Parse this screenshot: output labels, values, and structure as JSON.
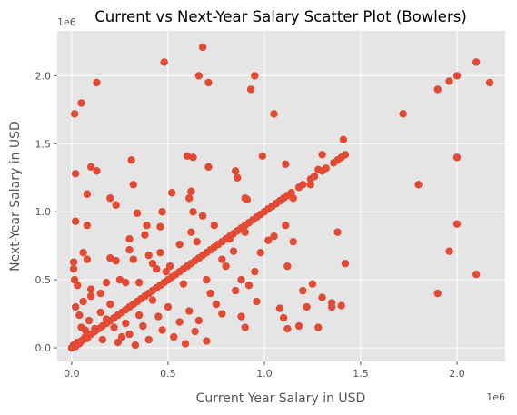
{
  "chart_data": {
    "type": "scatter",
    "title": "Current vs Next-Year Salary Scatter Plot (Bowlers)",
    "xlabel": "Current Year Salary in USD",
    "ylabel": "Next-Year Salary in USD",
    "x_offset_label": "1e6",
    "y_offset_label": "1e6",
    "xlim": [
      -75000,
      2250000
    ],
    "ylim": [
      -100000,
      2330000
    ],
    "x_ticks": [
      0,
      500000,
      1000000,
      1500000,
      2000000
    ],
    "x_tick_labels": [
      "0.0",
      "0.5",
      "1.0",
      "1.5",
      "2.0"
    ],
    "y_ticks": [
      0,
      500000,
      1000000,
      1500000,
      2000000
    ],
    "y_tick_labels": [
      "0.0",
      "0.5",
      "1.0",
      "1.5",
      "2.0"
    ],
    "grid": true,
    "style": "ggplot",
    "colors": {
      "point": "#E24A33",
      "plot_bg": "#E5E5E5",
      "grid": "#FFFFFF"
    },
    "points": [
      [
        0,
        0
      ],
      [
        10000,
        20000
      ],
      [
        20000,
        10000
      ],
      [
        30000,
        40000
      ],
      [
        40000,
        30000
      ],
      [
        50000,
        50000
      ],
      [
        60000,
        60000
      ],
      [
        70000,
        80000
      ],
      [
        80000,
        70000
      ],
      [
        90000,
        90000
      ],
      [
        100000,
        100000
      ],
      [
        120000,
        120000
      ],
      [
        140000,
        140000
      ],
      [
        160000,
        160000
      ],
      [
        180000,
        180000
      ],
      [
        200000,
        200000
      ],
      [
        220000,
        220000
      ],
      [
        240000,
        240000
      ],
      [
        260000,
        260000
      ],
      [
        280000,
        280000
      ],
      [
        300000,
        300000
      ],
      [
        320000,
        320000
      ],
      [
        340000,
        340000
      ],
      [
        360000,
        360000
      ],
      [
        380000,
        380000
      ],
      [
        400000,
        400000
      ],
      [
        420000,
        420000
      ],
      [
        440000,
        440000
      ],
      [
        460000,
        460000
      ],
      [
        480000,
        480000
      ],
      [
        500000,
        500000
      ],
      [
        520000,
        520000
      ],
      [
        540000,
        540000
      ],
      [
        560000,
        560000
      ],
      [
        580000,
        580000
      ],
      [
        600000,
        600000
      ],
      [
        620000,
        620000
      ],
      [
        640000,
        640000
      ],
      [
        660000,
        660000
      ],
      [
        680000,
        680000
      ],
      [
        700000,
        700000
      ],
      [
        720000,
        720000
      ],
      [
        740000,
        740000
      ],
      [
        760000,
        760000
      ],
      [
        780000,
        780000
      ],
      [
        800000,
        800000
      ],
      [
        820000,
        820000
      ],
      [
        840000,
        840000
      ],
      [
        860000,
        860000
      ],
      [
        880000,
        880000
      ],
      [
        900000,
        900000
      ],
      [
        920000,
        920000
      ],
      [
        940000,
        940000
      ],
      [
        960000,
        960000
      ],
      [
        980000,
        980000
      ],
      [
        1000000,
        1000000
      ],
      [
        1020000,
        1020000
      ],
      [
        1040000,
        1040000
      ],
      [
        1060000,
        1060000
      ],
      [
        1080000,
        1080000
      ],
      [
        1100000,
        1100000
      ],
      [
        1120000,
        1120000
      ],
      [
        1140000,
        1140000
      ],
      [
        1180000,
        1180000
      ],
      [
        1200000,
        1200000
      ],
      [
        1240000,
        1240000
      ],
      [
        1260000,
        1260000
      ],
      [
        1300000,
        1300000
      ],
      [
        1320000,
        1320000
      ],
      [
        1360000,
        1360000
      ],
      [
        1380000,
        1380000
      ],
      [
        1400000,
        1400000
      ],
      [
        1420000,
        1420000
      ],
      [
        1720000,
        1720000
      ],
      [
        1900000,
        1900000
      ],
      [
        1960000,
        1960000
      ],
      [
        2000000,
        2000000
      ],
      [
        2100000,
        2100000
      ],
      [
        15000,
        1720000
      ],
      [
        50000,
        1800000
      ],
      [
        130000,
        1950000
      ],
      [
        480000,
        2100000
      ],
      [
        680000,
        2210000
      ],
      [
        660000,
        2000000
      ],
      [
        710000,
        1950000
      ],
      [
        930000,
        1900000
      ],
      [
        950000,
        2000000
      ],
      [
        1050000,
        1720000
      ],
      [
        20000,
        1280000
      ],
      [
        100000,
        1330000
      ],
      [
        130000,
        1300000
      ],
      [
        310000,
        1380000
      ],
      [
        320000,
        1200000
      ],
      [
        600000,
        1410000
      ],
      [
        630000,
        1400000
      ],
      [
        710000,
        1330000
      ],
      [
        850000,
        1300000
      ],
      [
        860000,
        1250000
      ],
      [
        990000,
        1410000
      ],
      [
        1110000,
        1350000
      ],
      [
        1280000,
        1310000
      ],
      [
        1300000,
        1420000
      ],
      [
        1410000,
        1530000
      ],
      [
        1800000,
        1200000
      ],
      [
        2170000,
        1950000
      ],
      [
        20000,
        930000
      ],
      [
        80000,
        900000
      ],
      [
        80000,
        1130000
      ],
      [
        200000,
        1100000
      ],
      [
        230000,
        1050000
      ],
      [
        340000,
        990000
      ],
      [
        390000,
        900000
      ],
      [
        460000,
        890000
      ],
      [
        470000,
        1000000
      ],
      [
        520000,
        1140000
      ],
      [
        610000,
        1100000
      ],
      [
        620000,
        1150000
      ],
      [
        630000,
        1000000
      ],
      [
        680000,
        970000
      ],
      [
        900000,
        1100000
      ],
      [
        910000,
        1090000
      ],
      [
        1110000,
        900000
      ],
      [
        1150000,
        1100000
      ],
      [
        1240000,
        1200000
      ],
      [
        1380000,
        850000
      ],
      [
        2000000,
        910000
      ],
      [
        2000000,
        1400000
      ],
      [
        1900000,
        400000
      ],
      [
        1960000,
        710000
      ],
      [
        2100000,
        540000
      ],
      [
        1420000,
        620000
      ],
      [
        10000,
        580000
      ],
      [
        10000,
        630000
      ],
      [
        15000,
        500000
      ],
      [
        30000,
        460000
      ],
      [
        60000,
        700000
      ],
      [
        80000,
        650000
      ],
      [
        100000,
        430000
      ],
      [
        150000,
        400000
      ],
      [
        180000,
        480000
      ],
      [
        200000,
        660000
      ],
      [
        230000,
        640000
      ],
      [
        250000,
        500000
      ],
      [
        280000,
        480000
      ],
      [
        300000,
        720000
      ],
      [
        300000,
        800000
      ],
      [
        320000,
        650000
      ],
      [
        350000,
        480000
      ],
      [
        380000,
        830000
      ],
      [
        400000,
        680000
      ],
      [
        420000,
        620000
      ],
      [
        440000,
        580000
      ],
      [
        460000,
        700000
      ],
      [
        490000,
        560000
      ],
      [
        510000,
        600000
      ],
      [
        560000,
        760000
      ],
      [
        580000,
        470000
      ],
      [
        620000,
        850000
      ],
      [
        650000,
        780000
      ],
      [
        700000,
        500000
      ],
      [
        740000,
        900000
      ],
      [
        780000,
        650000
      ],
      [
        800000,
        600000
      ],
      [
        820000,
        800000
      ],
      [
        840000,
        710000
      ],
      [
        880000,
        500000
      ],
      [
        900000,
        850000
      ],
      [
        920000,
        460000
      ],
      [
        950000,
        560000
      ],
      [
        980000,
        700000
      ],
      [
        1020000,
        790000
      ],
      [
        1050000,
        820000
      ],
      [
        1120000,
        600000
      ],
      [
        1150000,
        780000
      ],
      [
        1200000,
        420000
      ],
      [
        1250000,
        470000
      ],
      [
        1300000,
        370000
      ],
      [
        1350000,
        330000
      ],
      [
        1400000,
        310000
      ],
      [
        20000,
        300000
      ],
      [
        40000,
        240000
      ],
      [
        50000,
        150000
      ],
      [
        60000,
        340000
      ],
      [
        70000,
        130000
      ],
      [
        90000,
        200000
      ],
      [
        100000,
        380000
      ],
      [
        120000,
        140000
      ],
      [
        150000,
        260000
      ],
      [
        160000,
        60000
      ],
      [
        180000,
        210000
      ],
      [
        200000,
        320000
      ],
      [
        220000,
        150000
      ],
      [
        240000,
        40000
      ],
      [
        260000,
        80000
      ],
      [
        280000,
        180000
      ],
      [
        300000,
        100000
      ],
      [
        330000,
        20000
      ],
      [
        350000,
        240000
      ],
      [
        370000,
        160000
      ],
      [
        400000,
        60000
      ],
      [
        420000,
        350000
      ],
      [
        450000,
        230000
      ],
      [
        470000,
        130000
      ],
      [
        500000,
        300000
      ],
      [
        530000,
        80000
      ],
      [
        560000,
        190000
      ],
      [
        590000,
        30000
      ],
      [
        610000,
        270000
      ],
      [
        640000,
        120000
      ],
      [
        660000,
        200000
      ],
      [
        700000,
        50000
      ],
      [
        720000,
        400000
      ],
      [
        750000,
        320000
      ],
      [
        780000,
        250000
      ],
      [
        850000,
        420000
      ],
      [
        880000,
        230000
      ],
      [
        900000,
        150000
      ],
      [
        960000,
        340000
      ],
      [
        1080000,
        290000
      ],
      [
        1100000,
        220000
      ],
      [
        1120000,
        140000
      ],
      [
        1180000,
        160000
      ],
      [
        1220000,
        300000
      ],
      [
        1280000,
        150000
      ],
      [
        1350000,
        300000
      ]
    ]
  }
}
